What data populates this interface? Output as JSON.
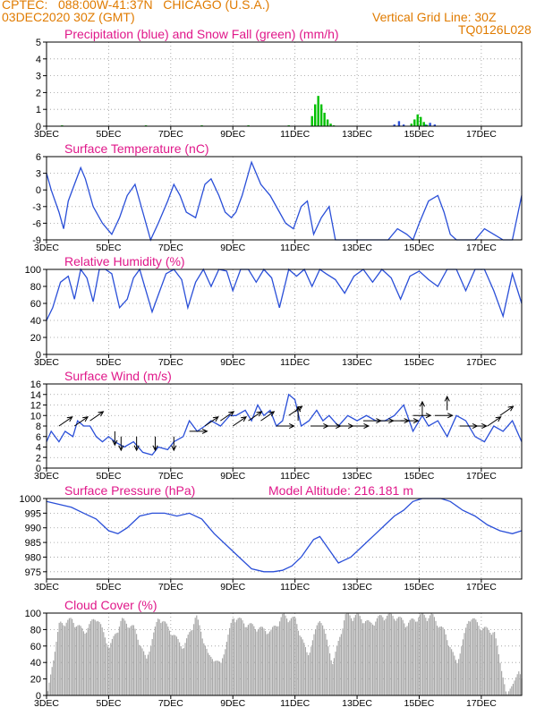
{
  "header": {
    "line1": "CPTEC:   088:00W-41:37N   CHICAGO (U.S.A.)",
    "line2_left": "03DEC2020 30Z (GMT)",
    "line2_right": "Vertical Grid Line: 30Z",
    "code": "TQ0126L028"
  },
  "colors": {
    "header": "#e07b00",
    "title": "#e0188a",
    "blue_series": "#2a4fd8",
    "green_series": "#00c000",
    "cloud": "#a9a9a9",
    "grid": "#999999"
  },
  "x_axis": {
    "ticks": [
      "3DEC",
      "5DEC",
      "7DEC",
      "9DEC",
      "11DEC",
      "13DEC",
      "15DEC",
      "17DEC"
    ],
    "tick_days": [
      0,
      2,
      4,
      6,
      8,
      10,
      12,
      14
    ],
    "start_label": "03DEC2020 30Z",
    "day_range": [
      0,
      15.3
    ]
  },
  "chart_data": [
    {
      "type": "bar",
      "title": "Precipitation (blue) and Snow Fall (green) (mm/h)",
      "ylim": [
        0,
        5
      ],
      "yticks": [
        0,
        1,
        2,
        3,
        4,
        5
      ],
      "series": [
        {
          "name": "Precipitation",
          "color": "blue",
          "x": [
            11.2,
            11.35,
            11.5,
            12.2,
            12.35,
            12.5
          ],
          "values": [
            0.1,
            0.3,
            0.1,
            0.1,
            0.2,
            0.1
          ]
        },
        {
          "name": "Snow Fall",
          "color": "green",
          "x": [
            0.5,
            3.2,
            5.0,
            6.5,
            7.8,
            8.55,
            8.65,
            8.75,
            8.85,
            8.95,
            9.05,
            9.15,
            9.25,
            11.75,
            11.85,
            11.95,
            12.05,
            12.15,
            12.25
          ],
          "values": [
            0.05,
            0.05,
            0.05,
            0.05,
            0.05,
            0.6,
            1.3,
            1.8,
            1.3,
            0.8,
            0.4,
            0.15,
            0.05,
            0.15,
            0.4,
            0.7,
            0.55,
            0.25,
            0.08
          ]
        }
      ]
    },
    {
      "type": "line",
      "title": "Surface Temperature (nC)",
      "ylim": [
        -9,
        6
      ],
      "yticks": [
        -9,
        -6,
        -3,
        0,
        3,
        6
      ],
      "series": [
        {
          "name": "Temperature",
          "color": "blue",
          "x": [
            0,
            0.15,
            0.4,
            0.55,
            0.7,
            0.9,
            1.1,
            1.25,
            1.5,
            1.8,
            2.1,
            2.35,
            2.6,
            2.85,
            3.1,
            3.35,
            3.6,
            3.9,
            4.1,
            4.3,
            4.5,
            4.8,
            5.1,
            5.3,
            5.55,
            5.75,
            5.95,
            6.1,
            6.3,
            6.6,
            6.9,
            7.2,
            7.5,
            7.7,
            7.95,
            8.2,
            8.4,
            8.6,
            8.85,
            9.1,
            9.3,
            9.6,
            10.0,
            10.5,
            11.0,
            11.3,
            11.6,
            11.8,
            12.0,
            12.3,
            12.6,
            12.8,
            13.0,
            13.2,
            13.4,
            13.6,
            13.8,
            14.1,
            14.4,
            14.7,
            15.0,
            15.3
          ],
          "values": [
            3,
            0,
            -4,
            -7,
            -2,
            1,
            4,
            2,
            -3,
            -6,
            -8,
            -5,
            -1,
            1,
            -4,
            -9,
            -6,
            -2,
            1,
            -1,
            -4,
            -5,
            1,
            2,
            -1,
            -4,
            -5,
            -4,
            -1,
            5,
            1,
            -1,
            -4,
            -6,
            -7,
            -3,
            -2,
            -8,
            -5,
            -3,
            -9,
            -10,
            -11,
            -10,
            -9,
            -7,
            -8,
            -9,
            -6,
            -2,
            -1,
            -4,
            -8,
            -9,
            -10,
            -11,
            -9,
            -7,
            -8,
            -10,
            -9,
            -1
          ]
        }
      ]
    },
    {
      "type": "line",
      "title": "Relative Humidity (%)",
      "ylim": [
        0,
        100
      ],
      "yticks": [
        0,
        20,
        40,
        60,
        80,
        100
      ],
      "series": [
        {
          "name": "Relative Humidity",
          "color": "blue",
          "x": [
            0,
            0.2,
            0.45,
            0.7,
            0.9,
            1.1,
            1.3,
            1.5,
            1.7,
            1.9,
            2.1,
            2.35,
            2.6,
            2.8,
            3.0,
            3.2,
            3.4,
            3.6,
            3.85,
            4.1,
            4.35,
            4.55,
            4.8,
            5.05,
            5.3,
            5.55,
            5.8,
            6.0,
            6.25,
            6.5,
            6.75,
            7.0,
            7.25,
            7.5,
            7.8,
            8.05,
            8.3,
            8.55,
            8.8,
            9.0,
            9.3,
            9.6,
            9.9,
            10.2,
            10.5,
            10.8,
            11.1,
            11.4,
            11.7,
            12.0,
            12.3,
            12.6,
            12.9,
            13.2,
            13.5,
            13.8,
            14.1,
            14.4,
            14.7,
            15.0,
            15.3
          ],
          "values": [
            40,
            55,
            85,
            92,
            65,
            100,
            90,
            62,
            100,
            100,
            95,
            55,
            65,
            90,
            100,
            75,
            50,
            70,
            95,
            100,
            88,
            55,
            85,
            100,
            80,
            100,
            98,
            75,
            100,
            100,
            85,
            100,
            90,
            55,
            100,
            92,
            100,
            80,
            100,
            95,
            88,
            72,
            92,
            100,
            85,
            100,
            90,
            65,
            92,
            98,
            88,
            80,
            100,
            100,
            75,
            100,
            100,
            75,
            45,
            95,
            60
          ]
        }
      ]
    },
    {
      "type": "line",
      "title": "Surface Wind (m/s)",
      "ylim": [
        0,
        16
      ],
      "yticks": [
        0,
        2,
        4,
        6,
        8,
        10,
        12,
        14,
        16
      ],
      "series": [
        {
          "name": "Wind Speed",
          "color": "blue",
          "x": [
            0,
            0.15,
            0.4,
            0.6,
            0.85,
            1.0,
            1.2,
            1.4,
            1.6,
            1.8,
            2.0,
            2.2,
            2.5,
            2.8,
            3.1,
            3.4,
            3.6,
            3.9,
            4.1,
            4.4,
            4.6,
            4.85,
            5.1,
            5.3,
            5.6,
            5.9,
            6.1,
            6.4,
            6.6,
            6.8,
            7.0,
            7.2,
            7.4,
            7.6,
            7.8,
            8.0,
            8.2,
            8.45,
            8.7,
            8.9,
            9.1,
            9.4,
            9.7,
            10.0,
            10.3,
            10.6,
            10.9,
            11.2,
            11.5,
            11.8,
            12.1,
            12.3,
            12.6,
            12.9,
            13.2,
            13.5,
            13.8,
            14.1,
            14.4,
            14.7,
            15.0,
            15.3
          ],
          "values": [
            5,
            7,
            5,
            7,
            6,
            9,
            8,
            8,
            6,
            5,
            6,
            5,
            4,
            5,
            3,
            2.5,
            4,
            3.5,
            5,
            6,
            9,
            7,
            8,
            9,
            8,
            10,
            10,
            11,
            9,
            12,
            10,
            11,
            8,
            9,
            14,
            13,
            8,
            9,
            11,
            9,
            10,
            8,
            10,
            9,
            10,
            9,
            9,
            10,
            12,
            7,
            10,
            8,
            9,
            6,
            10,
            9,
            6,
            5,
            8,
            7,
            9,
            5
          ]
        },
        {
          "name": "Wind Direction (arrows)",
          "x": [
            0.4,
            0.9,
            1.4,
            2.2,
            2.4,
            2.9,
            3.5,
            4.1,
            4.6,
            5.1,
            5.6,
            6.0,
            6.5,
            6.9,
            7.4,
            7.8,
            8.1,
            8.5,
            8.9,
            9.3,
            9.8,
            10.2,
            10.6,
            11.1,
            11.4,
            11.8,
            12.1,
            12.5,
            12.9,
            13.3,
            13.6,
            14.2,
            14.6
          ],
          "values": [
            8,
            8,
            9,
            7,
            6,
            6,
            6,
            6,
            7,
            8,
            9,
            8,
            9,
            9,
            8,
            10,
            9,
            8,
            8,
            8,
            8,
            9,
            9,
            9,
            9,
            10,
            10,
            10,
            11,
            8,
            8,
            8,
            10
          ],
          "directions": [
            "NE",
            "NE",
            "NE",
            "S",
            "S",
            "S",
            "S",
            "S",
            "E",
            "NE",
            "NE",
            "NE",
            "NE",
            "NE",
            "E",
            "NE",
            "N",
            "E",
            "E",
            "E",
            "E",
            "E",
            "E",
            "E",
            "E",
            "E",
            "N",
            "E",
            "N",
            "E",
            "E",
            "NE",
            "NE"
          ]
        }
      ]
    },
    {
      "type": "line",
      "title": "Surface Pressure (hPa)",
      "annotation": "Model Altitude: 216.181 m",
      "ylim": [
        972.5,
        1000
      ],
      "yticks": [
        975,
        980,
        985,
        990,
        995,
        1000
      ],
      "series": [
        {
          "name": "Pressure",
          "color": "blue",
          "x": [
            0,
            0.4,
            0.8,
            1.2,
            1.6,
            2.0,
            2.3,
            2.6,
            3.0,
            3.4,
            3.8,
            4.2,
            4.6,
            5.0,
            5.4,
            5.8,
            6.2,
            6.6,
            7.0,
            7.3,
            7.6,
            7.9,
            8.2,
            8.4,
            8.6,
            8.8,
            9.0,
            9.4,
            9.8,
            10.2,
            10.6,
            10.9,
            11.2,
            11.5,
            11.8,
            12.1,
            12.4,
            12.7,
            13.0,
            13.4,
            13.8,
            14.2,
            14.6,
            15.0,
            15.3
          ],
          "values": [
            999,
            998,
            997,
            995,
            993,
            989,
            988,
            990,
            994,
            995,
            995,
            994,
            995,
            993,
            988,
            984,
            980,
            976,
            975,
            975,
            975.5,
            977,
            980,
            983,
            986,
            987,
            984,
            978,
            980,
            984,
            988,
            991,
            994,
            996,
            999,
            1001,
            1001,
            1001,
            999,
            996,
            994,
            991,
            989,
            988,
            989
          ]
        }
      ]
    },
    {
      "type": "area",
      "title": "Cloud Cover (%)",
      "ylim": [
        0,
        100
      ],
      "yticks": [
        0,
        20,
        40,
        60,
        80,
        100
      ],
      "series": [
        {
          "name": "Cloud Cover",
          "color": "gray",
          "x": [
            0,
            0.4,
            0.8,
            1.2,
            1.6,
            2.0,
            2.4,
            2.8,
            3.2,
            3.6,
            4.0,
            4.4,
            4.8,
            5.2,
            5.6,
            6.0,
            6.4,
            6.8,
            7.2,
            7.6,
            8.0,
            8.4,
            8.8,
            9.2,
            9.6,
            10.0,
            10.4,
            10.8,
            11.2,
            11.6,
            12.0,
            12.4,
            12.8,
            13.2,
            13.6,
            14.0,
            14.4,
            14.8,
            15.2,
            15.3
          ],
          "values": [
            0,
            90,
            95,
            80,
            100,
            60,
            95,
            85,
            45,
            100,
            80,
            60,
            100,
            50,
            40,
            100,
            90,
            85,
            80,
            100,
            95,
            50,
            100,
            40,
            100,
            100,
            90,
            100,
            100,
            90,
            100,
            100,
            80,
            40,
            100,
            85,
            80,
            0,
            30,
            20
          ]
        }
      ]
    }
  ]
}
